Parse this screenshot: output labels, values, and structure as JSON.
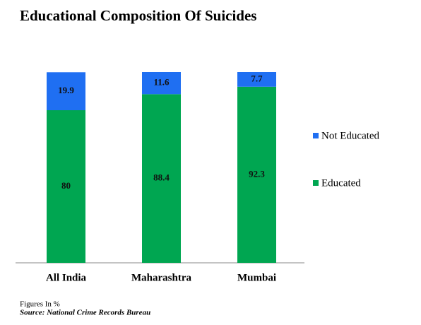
{
  "chart_data": {
    "type": "stacked_bar",
    "title": "Educational Composition Of Suicides",
    "categories": [
      "All India",
      "Maharashtra",
      "Mumbai"
    ],
    "series": [
      {
        "name": "Educated",
        "color": "#00a651",
        "values": [
          80,
          88.4,
          92.3
        ]
      },
      {
        "name": "Not Educated",
        "color": "#1f6ff2",
        "values": [
          19.9,
          11.6,
          7.7
        ]
      }
    ],
    "ylim": [
      0,
      100
    ],
    "legend": "right",
    "note": "Figures In %",
    "source": "Source: National Crime Records Bureau"
  }
}
